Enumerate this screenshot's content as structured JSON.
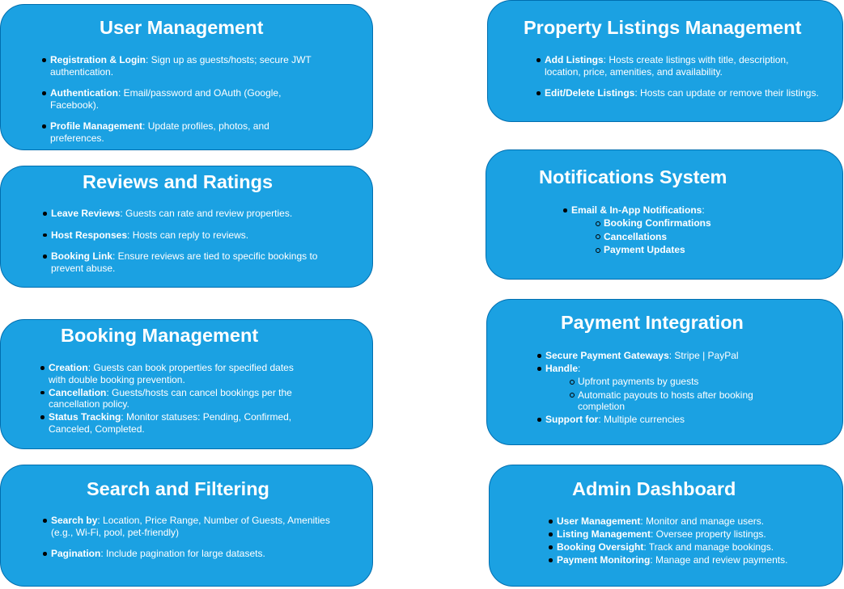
{
  "colors": {
    "card_fill": "#1ba1e2",
    "card_border": "#006eaf",
    "text": "#ffffff"
  },
  "cards": {
    "user_mgmt": {
      "title": "User Management",
      "items": [
        {
          "label": "Registration & Login",
          "text": ": Sign up as guests/hosts; secure JWT authentication."
        },
        {
          "label": "Authentication",
          "text": ": Email/password and OAuth (Google, Facebook)."
        },
        {
          "label": "Profile Management",
          "text": ": Update profiles, photos, and preferences."
        }
      ]
    },
    "property": {
      "title": "Property Listings Management",
      "items": [
        {
          "label": "Add Listings",
          "text": ": Hosts create listings with title, description, location, price, amenities, and availability."
        },
        {
          "label": "Edit/Delete Listings",
          "text": ": Hosts can update or remove their listings."
        }
      ]
    },
    "reviews": {
      "title": "Reviews and Ratings",
      "items": [
        {
          "label": "Leave Reviews",
          "text": ": Guests can rate and review properties."
        },
        {
          "label": "Host Responses",
          "text": ": Hosts can reply to reviews."
        },
        {
          "label": "Booking Link",
          "text": ": Ensure reviews are tied to specific bookings to prevent abuse."
        }
      ]
    },
    "notifications": {
      "title": "Notifications System",
      "items": [
        {
          "label": "Email & In-App Notifications",
          "text": ":"
        }
      ],
      "sub_items": [
        "Booking Confirmations",
        "Cancellations",
        "Payment Updates"
      ]
    },
    "booking": {
      "title": "Booking Management",
      "items": [
        {
          "label": "Creation",
          "text": ": Guests can book properties for specified dates with double booking prevention."
        },
        {
          "label": "Cancellation",
          "text": ": Guests/hosts can cancel bookings per the cancellation policy."
        },
        {
          "label": "Status Tracking",
          "text": ": Monitor statuses: Pending, Confirmed, Canceled, Completed."
        }
      ]
    },
    "payment": {
      "title": "Payment Integration",
      "items": [
        {
          "label": "Secure Payment Gateways",
          "text": ": Stripe | PayPal"
        },
        {
          "label": "Handle",
          "text": ":"
        },
        {
          "label": "Support for",
          "text": ": Multiple currencies"
        }
      ],
      "sub_items": [
        "Upfront payments by guests",
        "Automatic payouts to hosts after booking completion"
      ]
    },
    "search": {
      "title": "Search and Filtering",
      "items": [
        {
          "label": "Search by",
          "text": ": Location, Price Range, Number of Guests, Amenities (e.g., Wi-Fi, pool, pet-friendly)"
        },
        {
          "label": "Pagination",
          "text": ": Include pagination for large datasets."
        }
      ]
    },
    "admin": {
      "title": "Admin Dashboard",
      "items": [
        {
          "label": "User Management",
          "text": ": Monitor and manage users."
        },
        {
          "label": "Listing Management",
          "text": ": Oversee property listings."
        },
        {
          "label": "Booking Oversight",
          "text": ": Track and manage bookings."
        },
        {
          "label": "Payment Monitoring",
          "text": ": Manage and review payments."
        }
      ]
    }
  }
}
